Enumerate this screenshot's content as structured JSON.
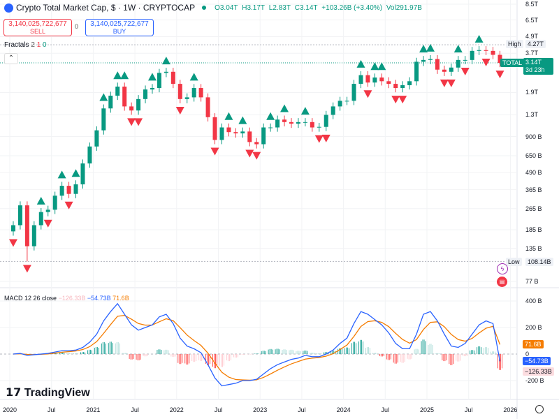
{
  "header": {
    "title": "Crypto Total Market Cap, $ · 1W · CRYPTOCAP",
    "o": "O3.04T",
    "h": "H3.17T",
    "l": "L2.83T",
    "c": "C3.14T",
    "change": "+103.26B (+3.40%)",
    "vol": "Vol291.97B"
  },
  "trade": {
    "sell_price": "3,140,025,722,677",
    "sell_label": "SELL",
    "spread": "0",
    "buy_price": "3,140,025,722,677",
    "buy_label": "BUY"
  },
  "fractals_legend": {
    "name": "Fractals",
    "p1": "2",
    "p2": "1",
    "p3": "0"
  },
  "macd_legend": {
    "name": "MACD 12 26 close",
    "hist": "−126.33B",
    "macd": "−54.73B",
    "signal": "71.6B"
  },
  "price_badges": {
    "high_label": "High",
    "high_value": "4.27T",
    "low_label": "Low",
    "low_value": "108.14B",
    "symbol": "TOTAL",
    "last": "3.14T",
    "countdown": "3d 23h"
  },
  "macd_badges": {
    "signal": "71.6B",
    "macd": "−54.73B",
    "hist": "−126.33B"
  },
  "brand": "TradingView",
  "colors": {
    "up": "#089981",
    "down": "#f23645",
    "macd": "#2962ff",
    "signal": "#f57c00"
  },
  "chart_data": [
    {
      "type": "candlestick",
      "scale": "log",
      "units": "B USD",
      "x_start": "2020-01",
      "interval": "1M (approx. of weekly chart)",
      "yticks": [
        {
          "v": 8500,
          "l": "8.5T"
        },
        {
          "v": 6500,
          "l": "6.5T"
        },
        {
          "v": 4900,
          "l": "4.9T"
        },
        {
          "v": 3700,
          "l": "3.7T"
        },
        {
          "v": 1900,
          "l": "1.9T"
        },
        {
          "v": 1300,
          "l": "1.3T"
        },
        {
          "v": 900,
          "l": "900 B"
        },
        {
          "v": 650,
          "l": "650 B"
        },
        {
          "v": 490,
          "l": "490 B"
        },
        {
          "v": 365,
          "l": "365 B"
        },
        {
          "v": 265,
          "l": "265 B"
        },
        {
          "v": 185,
          "l": "185 B"
        },
        {
          "v": 135,
          "l": "135 B"
        },
        {
          "v": 77,
          "l": "77 B"
        }
      ],
      "high": 4270,
      "low": 108.14,
      "last": 3140,
      "closes": [
        200,
        280,
        140,
        200,
        250,
        260,
        330,
        390,
        340,
        400,
        570,
        760,
        1000,
        1450,
        1800,
        2100,
        1500,
        1400,
        1700,
        2000,
        2050,
        2650,
        2700,
        2200,
        1700,
        1750,
        2050,
        1750,
        1250,
        850,
        1050,
        970,
        950,
        980,
        820,
        790,
        1050,
        1050,
        1200,
        1150,
        1120,
        1150,
        1150,
        1050,
        1060,
        1300,
        1500,
        1650,
        1650,
        2200,
        2550,
        2250,
        2450,
        2300,
        2200,
        2050,
        2150,
        2300,
        3200,
        3300,
        3350,
        2800,
        2700,
        2900,
        3300,
        3300,
        3850,
        3900,
        3850,
        3600,
        3140
      ],
      "fractals_up": [
        4,
        7,
        9,
        13,
        15,
        16,
        20,
        22,
        26,
        31,
        33,
        37,
        39,
        42,
        50,
        52,
        53,
        59,
        60,
        64,
        67
      ],
      "fractals_down": [
        0,
        2,
        5,
        8,
        17,
        18,
        24,
        29,
        34,
        35,
        44,
        45,
        51,
        55,
        56,
        62,
        63,
        65,
        68,
        70
      ]
    },
    {
      "type": "macd",
      "units": "B",
      "yticks": [
        {
          "v": 400,
          "l": "400 B"
        },
        {
          "v": 200,
          "l": "200 B"
        },
        {
          "v": 0,
          "l": "0"
        },
        {
          "v": -200,
          "l": "-200 B"
        }
      ],
      "macd": [
        0,
        5,
        -10,
        -5,
        0,
        5,
        15,
        25,
        25,
        30,
        50,
        90,
        150,
        250,
        320,
        380,
        300,
        220,
        180,
        200,
        220,
        280,
        300,
        230,
        120,
        60,
        40,
        10,
        -80,
        -180,
        -240,
        -230,
        -220,
        -200,
        -200,
        -190,
        -150,
        -110,
        -80,
        -60,
        -40,
        -30,
        -10,
        -20,
        -20,
        0,
        30,
        80,
        120,
        230,
        320,
        300,
        260,
        220,
        160,
        80,
        40,
        40,
        150,
        300,
        320,
        250,
        150,
        60,
        50,
        80,
        150,
        220,
        250,
        230,
        -54.73
      ],
      "signal": [
        0,
        2,
        -3,
        -4,
        -2,
        1,
        7,
        14,
        18,
        23,
        34,
        56,
        94,
        156,
        222,
        285,
        291,
        263,
        230,
        218,
        219,
        243,
        266,
        252,
        199,
        143,
        102,
        65,
        7,
        -68,
        -137,
        -174,
        -192,
        -195,
        -197,
        -194,
        -176,
        -150,
        -122,
        -97,
        -74,
        -56,
        -38,
        -31,
        -26,
        -16,
        3,
        34,
        68,
        133,
        208,
        245,
        251,
        239,
        207,
        156,
        110,
        82,
        109,
        185,
        239,
        243,
        206,
        148,
        109,
        97,
        118,
        159,
        195,
        209,
        71.6
      ],
      "histogram": [
        0,
        3,
        -7,
        -1,
        2,
        4,
        8,
        11,
        7,
        7,
        16,
        34,
        56,
        94,
        98,
        95,
        9,
        -43,
        -50,
        -18,
        1,
        37,
        34,
        -22,
        -79,
        -83,
        -62,
        -55,
        -87,
        -112,
        -103,
        -56,
        -28,
        -5,
        -3,
        4,
        26,
        40,
        42,
        37,
        34,
        26,
        28,
        11,
        6,
        16,
        27,
        46,
        52,
        97,
        112,
        55,
        9,
        -19,
        -47,
        -76,
        -70,
        -42,
        41,
        115,
        81,
        7,
        -56,
        -88,
        -59,
        -17,
        32,
        61,
        55,
        21,
        -126.33
      ]
    }
  ],
  "time_axis": [
    {
      "t": 2020,
      "l": "2020"
    },
    {
      "t": 2020.5,
      "l": "Jul"
    },
    {
      "t": 2021,
      "l": "2021"
    },
    {
      "t": 2021.5,
      "l": "Jul"
    },
    {
      "t": 2022,
      "l": "2022"
    },
    {
      "t": 2022.5,
      "l": "Jul"
    },
    {
      "t": 2023,
      "l": "2023"
    },
    {
      "t": 2023.5,
      "l": "Jul"
    },
    {
      "t": 2024,
      "l": "2024"
    },
    {
      "t": 2024.5,
      "l": "Jul"
    },
    {
      "t": 2025,
      "l": "2025"
    },
    {
      "t": 2025.5,
      "l": "Jul"
    },
    {
      "t": 2026,
      "l": "2026"
    }
  ]
}
